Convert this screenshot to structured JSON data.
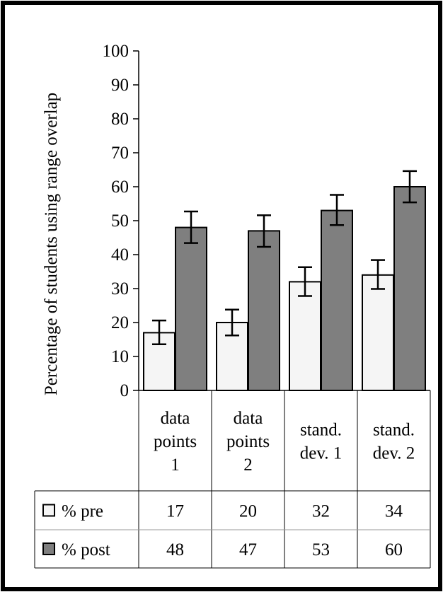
{
  "chart_data": {
    "type": "bar",
    "title": "",
    "xlabel": "",
    "ylabel": "Percentage of students using range overlap",
    "ylim": [
      0,
      100
    ],
    "yticks": [
      0,
      10,
      20,
      30,
      40,
      50,
      60,
      70,
      80,
      90,
      100
    ],
    "grid": false,
    "legend": "table-below",
    "categories": [
      [
        "data",
        "points",
        "1"
      ],
      [
        "data",
        "points",
        "2"
      ],
      [
        "stand.",
        "dev. 1"
      ],
      [
        "stand.",
        "dev. 2"
      ]
    ],
    "series": [
      {
        "name": "% pre",
        "values": [
          17,
          20,
          32,
          34
        ],
        "error_low": [
          13.6,
          16.2,
          27.8,
          29.9
        ],
        "error_high": [
          20.6,
          23.8,
          36.3,
          38.4
        ],
        "color": "#f5f5f5"
      },
      {
        "name": "% post",
        "values": [
          48,
          47,
          53,
          60
        ],
        "error_low": [
          43.4,
          42.3,
          48.7,
          55.4
        ],
        "error_high": [
          52.7,
          51.6,
          57.6,
          64.6
        ],
        "color": "#7f7f7f"
      }
    ],
    "table": {
      "rows": [
        {
          "label": "% pre",
          "cells": [
            "17",
            "20",
            "32",
            "34"
          ]
        },
        {
          "label": "% post",
          "cells": [
            "48",
            "47",
            "53",
            "60"
          ]
        }
      ]
    }
  }
}
